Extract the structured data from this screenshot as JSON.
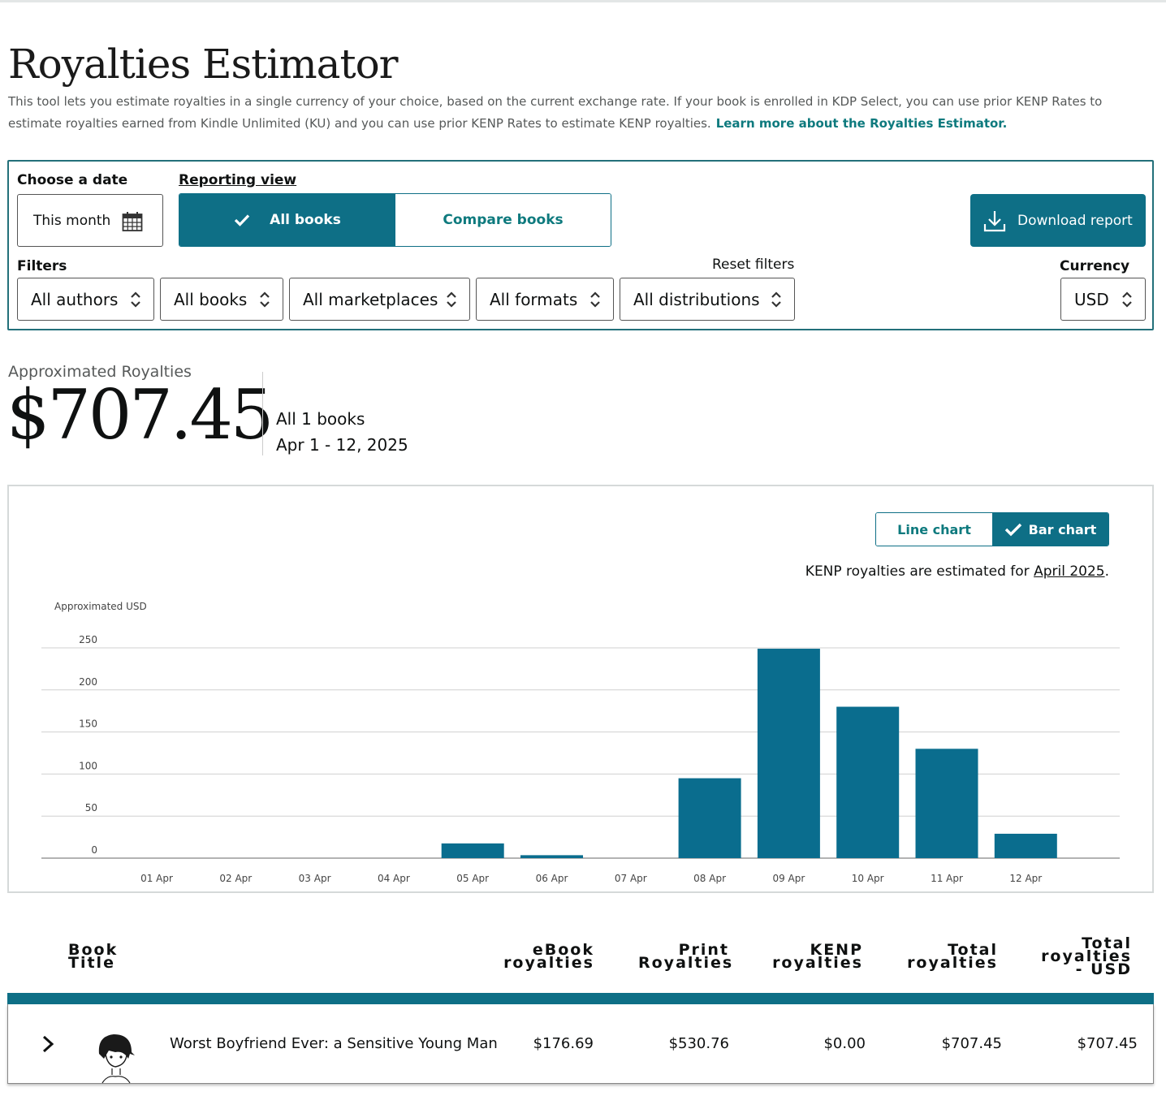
{
  "page": {
    "title": "Royalties Estimator",
    "intro": "This tool lets you estimate royalties in a single currency of your choice, based on the current exchange rate. If your book is enrolled in KDP Select, you can use prior KENP Rates to estimate royalties earned from Kindle Unlimited (KU) and you can use prior KENP Rates to estimate KENP royalties.",
    "learn_more": "Learn more about the Royalties Estimator."
  },
  "controls": {
    "choose_date_label": "Choose a date",
    "date_value": "This month",
    "reporting_view_label": "Reporting view",
    "view_all_books": "All books",
    "view_compare_books": "Compare books",
    "download_report": "Download report",
    "filters_label": "Filters",
    "reset_filters": "Reset filters",
    "currency_label": "Currency",
    "filter_authors": "All authors",
    "filter_books": "All books",
    "filter_marketplaces": "All marketplaces",
    "filter_formats": "All formats",
    "filter_distributions": "All distributions",
    "currency_value": "USD"
  },
  "summary": {
    "label": "Approximated Royalties",
    "amount": "$707.45",
    "books": "All 1 books",
    "range": "Apr 1 - 12, 2025"
  },
  "chart_controls": {
    "line_chart": "Line chart",
    "bar_chart": "Bar chart",
    "kenp_note_prefix": "KENP royalties are estimated for ",
    "kenp_note_month": "April 2025",
    "kenp_note_suffix": "."
  },
  "chart_data": {
    "type": "bar",
    "ylabel": "Approximated USD",
    "ylim": [
      0,
      250
    ],
    "yticks": [
      0,
      50,
      100,
      150,
      200,
      250
    ],
    "grid": true,
    "color": "#0a6d8e",
    "categories": [
      "01 Apr",
      "02 Apr",
      "03 Apr",
      "04 Apr",
      "05 Apr",
      "06 Apr",
      "07 Apr",
      "08 Apr",
      "09 Apr",
      "10 Apr",
      "11 Apr",
      "12 Apr"
    ],
    "values": [
      0,
      0,
      0,
      0,
      17.5,
      3.5,
      0,
      95,
      249,
      180,
      130,
      29
    ]
  },
  "table": {
    "headers": {
      "book_title": "Book Title",
      "ebook": "eBook royalties",
      "print": "Print Royalties",
      "kenp": "KENP royalties",
      "total": "Total royalties",
      "total_usd": "Total royalties - USD"
    },
    "rows": [
      {
        "title": "Worst Boyfriend Ever: a Sensitive Young Man",
        "ebook": "$176.69",
        "print": "$530.76",
        "kenp": "$0.00",
        "total": "$707.45",
        "total_usd": "$707.45"
      }
    ]
  }
}
